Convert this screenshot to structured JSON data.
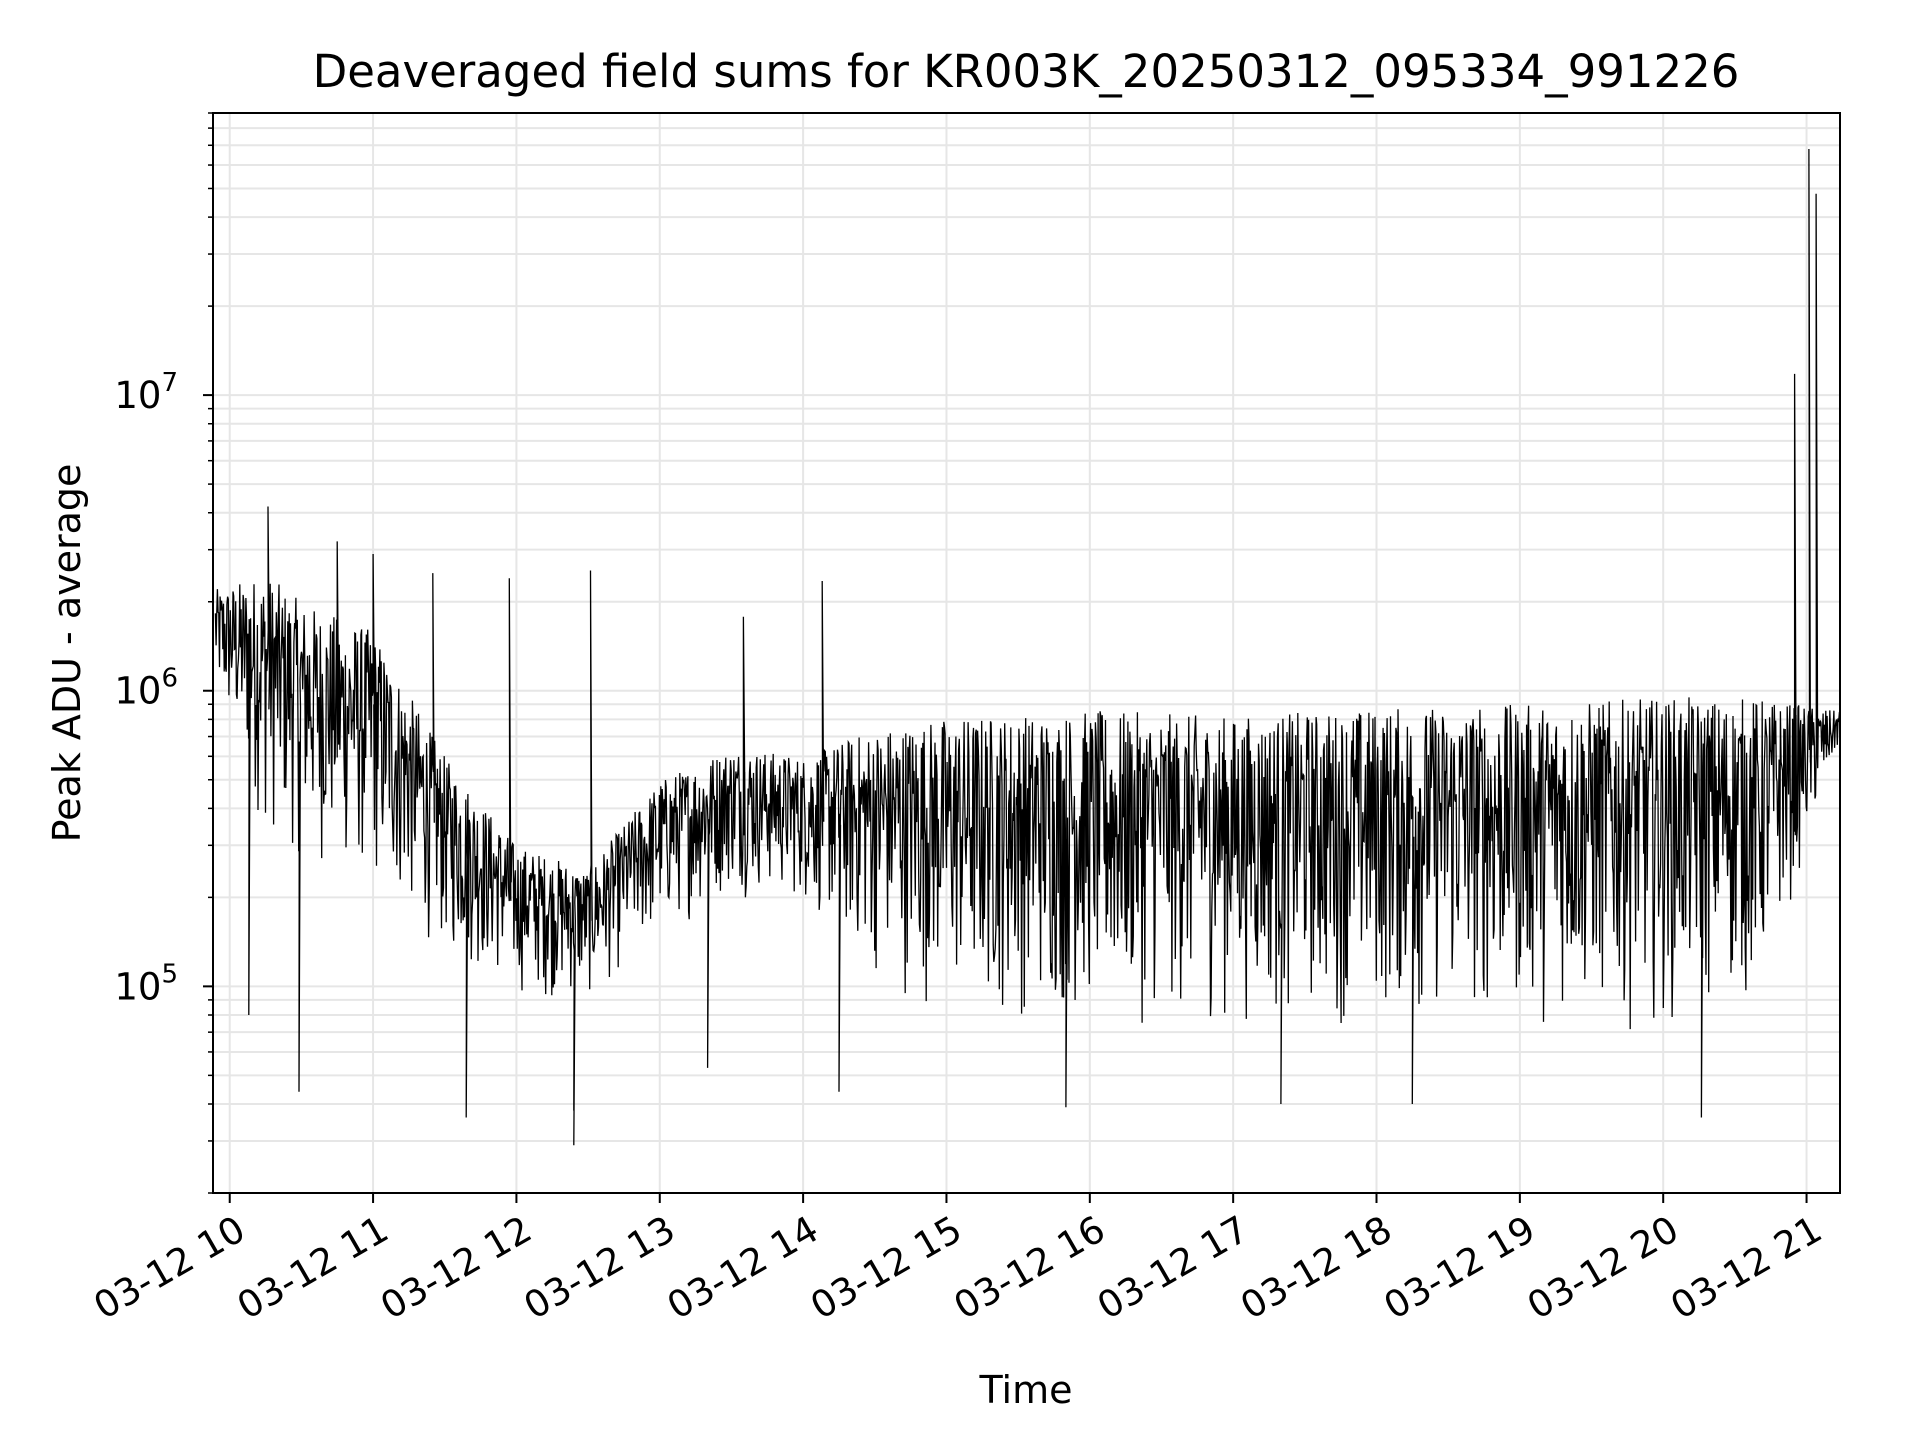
{
  "chart_data": {
    "type": "line",
    "title": "Deaveraged field sums for KR003K_20250312_095334_991226",
    "xlabel": "Time",
    "ylabel": "Peak ADU - average",
    "yscale": "log",
    "ylim": [
      20000,
      90000000
    ],
    "xlim": [
      "03-12 09:53",
      "03-12 21:14"
    ],
    "grid": true,
    "x_tick_labels": [
      "03-12 10",
      "03-12 11",
      "03-12 12",
      "03-12 13",
      "03-12 14",
      "03-12 15",
      "03-12 16",
      "03-12 17",
      "03-12 18",
      "03-12 19",
      "03-12 20",
      "03-12 21"
    ],
    "y_tick_labels": [
      {
        "value": 100000,
        "base": "10",
        "exp": "5"
      },
      {
        "value": 1000000,
        "base": "10",
        "exp": "6"
      },
      {
        "value": 10000000,
        "base": "10",
        "exp": "7"
      }
    ],
    "series": [
      {
        "color": "#000000",
        "envelope": [
          {
            "x": "03-12 09:54",
            "low": 900000,
            "high": 2200000
          },
          {
            "x": "03-12 10:15",
            "low": 300000,
            "high": 2500000
          },
          {
            "x": "03-12 10:30",
            "low": 250000,
            "high": 2000000
          },
          {
            "x": "03-12 11:00",
            "low": 200000,
            "high": 1600000
          },
          {
            "x": "03-12 11:30",
            "low": 120000,
            "high": 600000
          },
          {
            "x": "03-12 12:00",
            "low": 90000,
            "high": 300000
          },
          {
            "x": "03-12 12:30",
            "low": 85000,
            "high": 250000
          },
          {
            "x": "03-12 13:00",
            "low": 140000,
            "high": 500000
          },
          {
            "x": "03-12 13:30",
            "low": 200000,
            "high": 650000
          },
          {
            "x": "03-12 14:00",
            "low": 180000,
            "high": 600000
          },
          {
            "x": "03-12 14:30",
            "low": 100000,
            "high": 750000
          },
          {
            "x": "03-12 15:00",
            "low": 75000,
            "high": 820000
          },
          {
            "x": "03-12 16:00",
            "low": 70000,
            "high": 860000
          },
          {
            "x": "03-12 17:00",
            "low": 70000,
            "high": 820000
          },
          {
            "x": "03-12 18:00",
            "low": 70000,
            "high": 880000
          },
          {
            "x": "03-12 19:00",
            "low": 70000,
            "high": 900000
          },
          {
            "x": "03-12 20:00",
            "low": 70000,
            "high": 950000
          },
          {
            "x": "03-12 20:40",
            "low": 80000,
            "high": 950000
          },
          {
            "x": "03-12 21:14",
            "low": 650000,
            "high": 850000
          }
        ],
        "spikes": [
          {
            "x": "03-12 10:16",
            "value": 4200000
          },
          {
            "x": "03-12 10:45",
            "value": 3200000
          },
          {
            "x": "03-12 11:00",
            "value": 2900000
          },
          {
            "x": "03-12 11:25",
            "value": 2500000
          },
          {
            "x": "03-12 11:57",
            "value": 2400000
          },
          {
            "x": "03-12 12:31",
            "value": 2550000
          },
          {
            "x": "03-12 13:35",
            "value": 1780000
          },
          {
            "x": "03-12 14:08",
            "value": 2350000
          },
          {
            "x": "03-12 20:55",
            "value": 11800000
          },
          {
            "x": "03-12 21:01",
            "value": 68000000
          },
          {
            "x": "03-12 21:04",
            "value": 48000000
          }
        ],
        "dips": [
          {
            "x": "03-12 10:08",
            "value": 80000
          },
          {
            "x": "03-12 10:29",
            "value": 44000
          },
          {
            "x": "03-12 11:39",
            "value": 36000
          },
          {
            "x": "03-12 12:24",
            "value": 38000
          },
          {
            "x": "03-12 12:24",
            "value": 29000
          },
          {
            "x": "03-12 13:20",
            "value": 53000
          },
          {
            "x": "03-12 14:15",
            "value": 44000
          },
          {
            "x": "03-12 15:50",
            "value": 39000
          },
          {
            "x": "03-12 17:20",
            "value": 40000
          },
          {
            "x": "03-12 18:15",
            "value": 40000
          },
          {
            "x": "03-12 20:16",
            "value": 36000
          }
        ]
      }
    ]
  }
}
